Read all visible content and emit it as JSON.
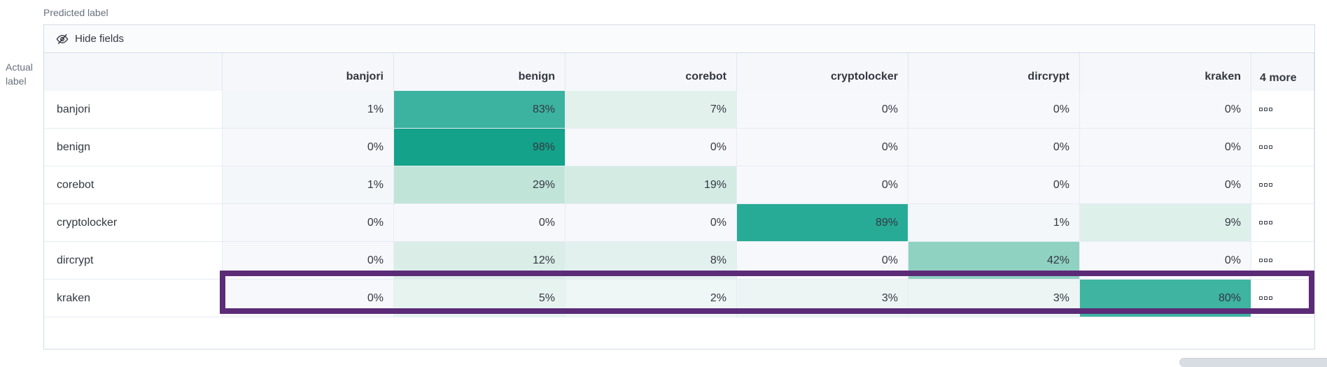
{
  "axes": {
    "predicted": "Predicted label",
    "actual": "Actual label"
  },
  "toolbar": {
    "hide_fields_label": "Hide fields"
  },
  "grid": {
    "columns": [
      "banjori",
      "benign",
      "corebot",
      "cryptolocker",
      "dircrypt",
      "kraken"
    ],
    "more_header": "4 more",
    "row_actions_icon": "boxes-horizontal",
    "rows": [
      {
        "label": "banjori",
        "cells": [
          {
            "text": "1%",
            "bg": "#f3f7fa"
          },
          {
            "text": "83%",
            "bg": "#3bb3a0"
          },
          {
            "text": "7%",
            "bg": "#e2f1ec"
          },
          {
            "text": "0%",
            "bg": "#f7f8fc"
          },
          {
            "text": "0%",
            "bg": "#f7f8fc"
          },
          {
            "text": "0%",
            "bg": "#f7f8fc"
          }
        ]
      },
      {
        "label": "benign",
        "cells": [
          {
            "text": "0%",
            "bg": "#f7f8fc"
          },
          {
            "text": "98%",
            "bg": "#14a28a"
          },
          {
            "text": "0%",
            "bg": "#f7f8fc"
          },
          {
            "text": "0%",
            "bg": "#f7f8fc"
          },
          {
            "text": "0%",
            "bg": "#f7f8fc"
          },
          {
            "text": "0%",
            "bg": "#f7f8fc"
          }
        ]
      },
      {
        "label": "corebot",
        "cells": [
          {
            "text": "1%",
            "bg": "#f3f7fa"
          },
          {
            "text": "29%",
            "bg": "#c0e4d8"
          },
          {
            "text": "19%",
            "bg": "#d4ebe3"
          },
          {
            "text": "0%",
            "bg": "#f7f8fc"
          },
          {
            "text": "0%",
            "bg": "#f7f8fc"
          },
          {
            "text": "0%",
            "bg": "#f7f8fc"
          }
        ]
      },
      {
        "label": "cryptolocker",
        "cells": [
          {
            "text": "0%",
            "bg": "#f7f8fc"
          },
          {
            "text": "0%",
            "bg": "#f7f8fc"
          },
          {
            "text": "0%",
            "bg": "#f7f8fc"
          },
          {
            "text": "89%",
            "bg": "#28ab96"
          },
          {
            "text": "1%",
            "bg": "#f3f7fa"
          },
          {
            "text": "9%",
            "bg": "#def0ea"
          }
        ]
      },
      {
        "label": "dircrypt",
        "cells": [
          {
            "text": "0%",
            "bg": "#f7f8fc"
          },
          {
            "text": "12%",
            "bg": "#daeee7"
          },
          {
            "text": "8%",
            "bg": "#e2f1ed"
          },
          {
            "text": "0%",
            "bg": "#f7f8fc"
          },
          {
            "text": "42%",
            "bg": "#8fd2c2"
          },
          {
            "text": "0%",
            "bg": "#f7f8fc"
          }
        ]
      },
      {
        "label": "kraken",
        "cells": [
          {
            "text": "0%",
            "bg": "#f7f8fc"
          },
          {
            "text": "5%",
            "bg": "#e7f3ef"
          },
          {
            "text": "2%",
            "bg": "#eff6f6"
          },
          {
            "text": "3%",
            "bg": "#ecf5f3"
          },
          {
            "text": "3%",
            "bg": "#ecf5f3"
          },
          {
            "text": "80%",
            "bg": "#3eb4a1"
          }
        ]
      }
    ]
  },
  "highlight": {
    "row_label": "dircrypt",
    "color": "#5c2b78"
  },
  "colors": {
    "accent_teal_max": "#14a28a",
    "header_bg": "#f5f7fa",
    "border": "#d3dae6",
    "text": "#343741",
    "subdued_text": "#69707d",
    "scrollbar_thumb": "#d8dce3"
  },
  "chart_data": {
    "type": "heatmap",
    "title": "Confusion matrix",
    "x_label": "Predicted label",
    "y_label": "Actual label",
    "x_categories": [
      "banjori",
      "benign",
      "corebot",
      "cryptolocker",
      "dircrypt",
      "kraken"
    ],
    "y_categories": [
      "banjori",
      "benign",
      "corebot",
      "cryptolocker",
      "dircrypt",
      "kraken"
    ],
    "values_percent": [
      [
        1,
        83,
        7,
        0,
        0,
        0
      ],
      [
        0,
        98,
        0,
        0,
        0,
        0
      ],
      [
        1,
        29,
        19,
        0,
        0,
        0
      ],
      [
        0,
        0,
        0,
        89,
        1,
        9
      ],
      [
        0,
        12,
        8,
        0,
        42,
        0
      ],
      [
        0,
        5,
        2,
        3,
        3,
        80
      ]
    ],
    "hidden_columns_indicator": "4 more",
    "legend_position": "none",
    "highlighted_row": "dircrypt"
  }
}
